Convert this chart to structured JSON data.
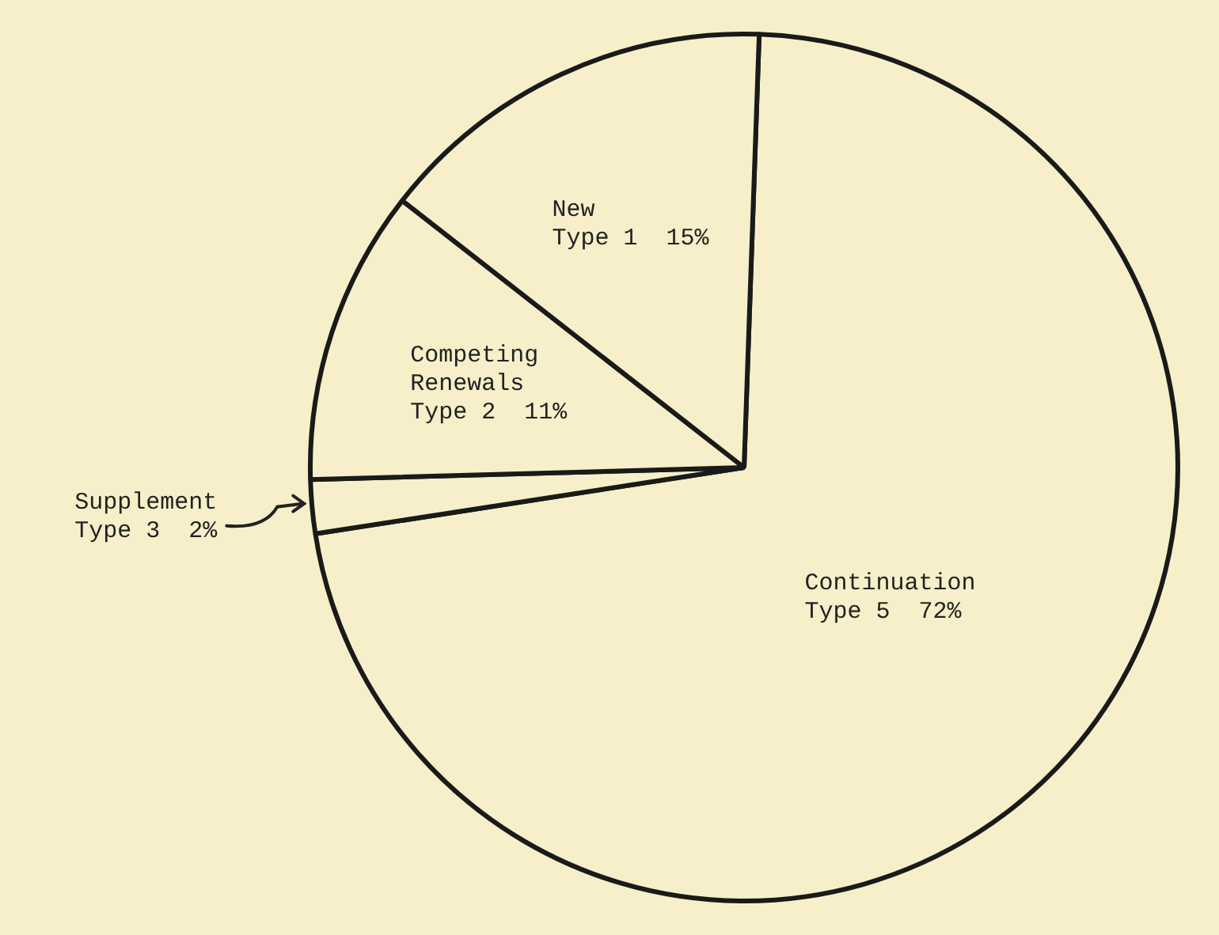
{
  "chart_data": {
    "type": "pie",
    "categories": [
      "Continuation\nType 5",
      "Supplement\nType 3",
      "Competing\nRenewals\nType 2",
      "New\nType 1"
    ],
    "values": [
      72,
      2,
      11,
      15
    ],
    "colors": [
      "#f6efc9",
      "#f6efc9",
      "#f6efc9",
      "#f6efc9"
    ],
    "value_labels": [
      "72%",
      "2%",
      "11%",
      "15%"
    ],
    "legend": false
  }
}
